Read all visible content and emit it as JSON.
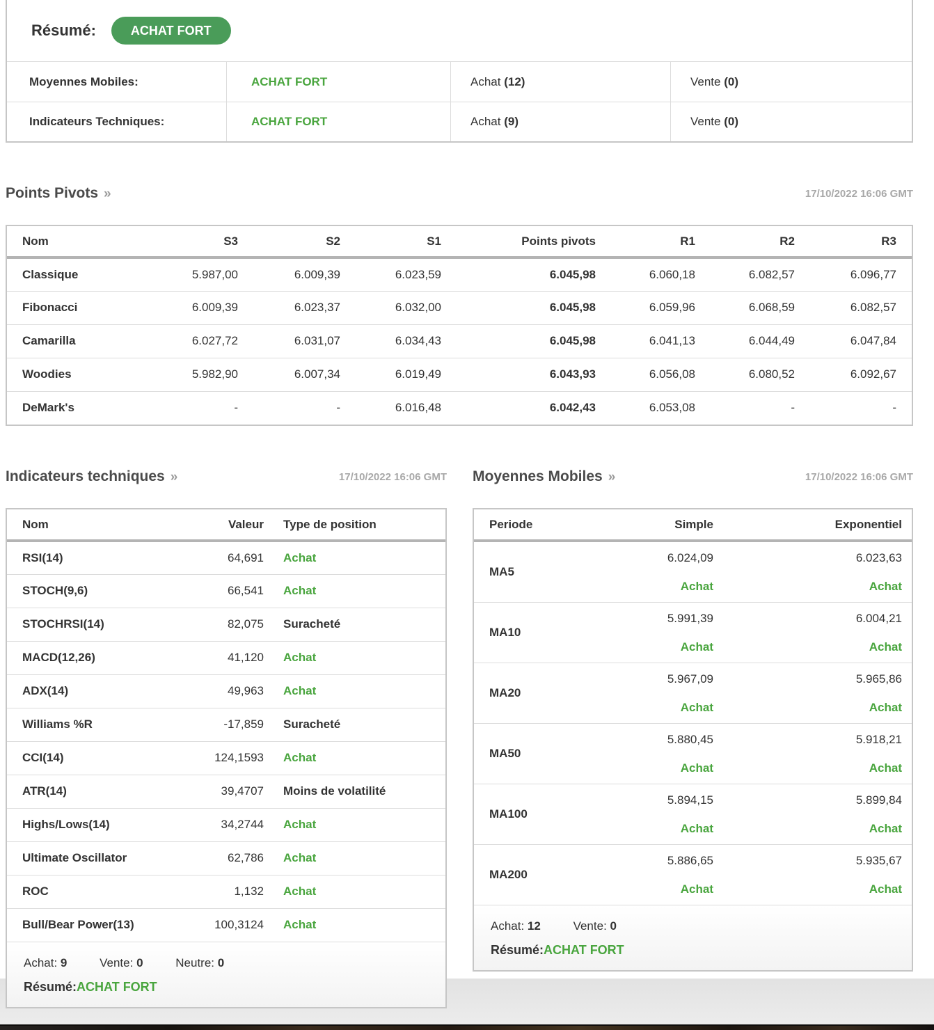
{
  "ui": {
    "chevron_icon": "»",
    "green_text_color": "#49a53e",
    "green_badge_color": "#4a9c59"
  },
  "summary": {
    "resume_label": "Résumé:",
    "resume_value": "ACHAT FORT",
    "rows": [
      {
        "label": "Moyennes Mobiles:",
        "signal": "ACHAT FORT",
        "buy_label": "Achat ",
        "buy_count": "(12)",
        "sell_label": "Vente ",
        "sell_count": "(0)"
      },
      {
        "label": "Indicateurs Techniques:",
        "signal": "ACHAT FORT",
        "buy_label": "Achat ",
        "buy_count": "(9)",
        "sell_label": "Vente ",
        "sell_count": "(0)"
      }
    ]
  },
  "pivots": {
    "title": "Points Pivots",
    "timestamp": "17/10/2022 16:06 GMT",
    "headers": {
      "name": "Nom",
      "s3": "S3",
      "s2": "S2",
      "s1": "S1",
      "pp": "Points pivots",
      "r1": "R1",
      "r2": "R2",
      "r3": "R3"
    },
    "rows": [
      {
        "name": "Classique",
        "s3": "5.987,00",
        "s2": "6.009,39",
        "s1": "6.023,59",
        "pp": "6.045,98",
        "r1": "6.060,18",
        "r2": "6.082,57",
        "r3": "6.096,77"
      },
      {
        "name": "Fibonacci",
        "s3": "6.009,39",
        "s2": "6.023,37",
        "s1": "6.032,00",
        "pp": "6.045,98",
        "r1": "6.059,96",
        "r2": "6.068,59",
        "r3": "6.082,57"
      },
      {
        "name": "Camarilla",
        "s3": "6.027,72",
        "s2": "6.031,07",
        "s1": "6.034,43",
        "pp": "6.045,98",
        "r1": "6.041,13",
        "r2": "6.044,49",
        "r3": "6.047,84"
      },
      {
        "name": "Woodies",
        "s3": "5.982,90",
        "s2": "6.007,34",
        "s1": "6.019,49",
        "pp": "6.043,93",
        "r1": "6.056,08",
        "r2": "6.080,52",
        "r3": "6.092,67"
      },
      {
        "name": "DeMark's",
        "s3": "-",
        "s2": "-",
        "s1": "6.016,48",
        "pp": "6.042,43",
        "r1": "6.053,08",
        "r2": "-",
        "r3": "-"
      }
    ]
  },
  "indicators": {
    "title": "Indicateurs techniques",
    "timestamp": "17/10/2022 16:06 GMT",
    "headers": {
      "name": "Nom",
      "value": "Valeur",
      "action": "Type de position"
    },
    "rows": [
      {
        "name": "RSI(14)",
        "value": "64,691",
        "action": "Achat",
        "action_type": "buy"
      },
      {
        "name": "STOCH(9,6)",
        "value": "66,541",
        "action": "Achat",
        "action_type": "buy"
      },
      {
        "name": "STOCHRSI(14)",
        "value": "82,075",
        "action": "Suracheté",
        "action_type": "neutral"
      },
      {
        "name": "MACD(12,26)",
        "value": "41,120",
        "action": "Achat",
        "action_type": "buy"
      },
      {
        "name": "ADX(14)",
        "value": "49,963",
        "action": "Achat",
        "action_type": "buy"
      },
      {
        "name": "Williams %R",
        "value": "-17,859",
        "action": "Suracheté",
        "action_type": "neutral"
      },
      {
        "name": "CCI(14)",
        "value": "124,1593",
        "action": "Achat",
        "action_type": "buy"
      },
      {
        "name": "ATR(14)",
        "value": "39,4707",
        "action": "Moins de volatilité",
        "action_type": "neutral"
      },
      {
        "name": "Highs/Lows(14)",
        "value": "34,2744",
        "action": "Achat",
        "action_type": "buy"
      },
      {
        "name": "Ultimate Oscillator",
        "value": "62,786",
        "action": "Achat",
        "action_type": "buy"
      },
      {
        "name": "ROC",
        "value": "1,132",
        "action": "Achat",
        "action_type": "buy"
      },
      {
        "name": "Bull/Bear Power(13)",
        "value": "100,3124",
        "action": "Achat",
        "action_type": "buy"
      }
    ],
    "footer": {
      "buy_label": "Achat: ",
      "buy_count": "9",
      "sell_label": "Vente: ",
      "sell_count": "0",
      "neutral_label": "Neutre: ",
      "neutral_count": "0",
      "resume_label": "Résumé:",
      "resume_value": "ACHAT FORT"
    }
  },
  "moving_averages": {
    "title": "Moyennes Mobiles",
    "timestamp": "17/10/2022 16:06 GMT",
    "headers": {
      "period": "Periode",
      "simple": "Simple",
      "exponential": "Exponentiel"
    },
    "rows": [
      {
        "period": "MA5",
        "simple": "6.024,09",
        "simple_action": "Achat",
        "exp": "6.023,63",
        "exp_action": "Achat"
      },
      {
        "period": "MA10",
        "simple": "5.991,39",
        "simple_action": "Achat",
        "exp": "6.004,21",
        "exp_action": "Achat"
      },
      {
        "period": "MA20",
        "simple": "5.967,09",
        "simple_action": "Achat",
        "exp": "5.965,86",
        "exp_action": "Achat"
      },
      {
        "period": "MA50",
        "simple": "5.880,45",
        "simple_action": "Achat",
        "exp": "5.918,21",
        "exp_action": "Achat"
      },
      {
        "period": "MA100",
        "simple": "5.894,15",
        "simple_action": "Achat",
        "exp": "5.899,84",
        "exp_action": "Achat"
      },
      {
        "period": "MA200",
        "simple": "5.886,65",
        "simple_action": "Achat",
        "exp": "5.935,67",
        "exp_action": "Achat"
      }
    ],
    "footer": {
      "buy_label": "Achat: ",
      "buy_count": "12",
      "sell_label": "Vente: ",
      "sell_count": "0",
      "resume_label": "Résumé:",
      "resume_value": "ACHAT FORT"
    }
  }
}
